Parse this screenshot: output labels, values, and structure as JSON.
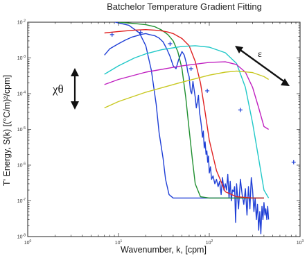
{
  "chart_data": {
    "type": "line",
    "title": "Batchelor Temperature Gradient Fitting",
    "xlabel": "Wavenumber, k, [cpm]",
    "ylabel": "T' Energy, S(k) [(°C/m)²/cpm]",
    "x_scale": "log",
    "y_scale": "log",
    "xlim": [
      1,
      1000
    ],
    "ylim": [
      1e-08,
      0.01
    ],
    "x_ticks": [
      {
        "value": 1,
        "base": "10",
        "exp": "0"
      },
      {
        "value": 10,
        "base": "10",
        "exp": "1"
      },
      {
        "value": 100,
        "base": "10",
        "exp": "2"
      },
      {
        "value": 1000,
        "base": "10",
        "exp": "3"
      }
    ],
    "y_ticks": [
      {
        "value": 1e-08,
        "base": "10",
        "exp": "-8"
      },
      {
        "value": 1e-07,
        "base": "10",
        "exp": "-7"
      },
      {
        "value": 1e-06,
        "base": "10",
        "exp": "-6"
      },
      {
        "value": 1e-05,
        "base": "10",
        "exp": "-5"
      },
      {
        "value": 0.0001,
        "base": "10",
        "exp": "-4"
      },
      {
        "value": 0.001,
        "base": "10",
        "exp": "-3"
      },
      {
        "value": 0.01,
        "base": "10",
        "exp": "-2"
      }
    ],
    "annotations": [
      {
        "text": "χθ",
        "role": "chi-theta arrow (vertical)"
      },
      {
        "text": "ε",
        "role": "epsilon arrow (diagonal)"
      }
    ],
    "series": [
      {
        "color": "#1f3fd6",
        "x": [
          7,
          8,
          10,
          13,
          17,
          20,
          23,
          26,
          28,
          31,
          33,
          36,
          40,
          45,
          60,
          100,
          200,
          400
        ],
        "y": [
          0.012,
          0.011,
          0.0095,
          0.0082,
          0.005,
          0.0022,
          0.00045,
          5e-05,
          8e-06,
          1.5e-06,
          4e-07,
          1.5e-07,
          1.2e-07,
          1.2e-07,
          1.2e-07,
          1.2e-07,
          1.2e-07,
          1.2e-07
        ]
      },
      {
        "color": "#1f3fd6",
        "x": [
          7,
          8,
          10,
          12,
          14,
          16,
          18,
          20,
          22,
          25,
          28,
          31,
          34,
          37,
          40,
          43,
          46,
          50,
          53,
          56,
          58,
          60,
          62,
          64,
          66,
          68,
          70,
          72,
          74,
          76,
          78,
          80,
          82,
          84,
          86,
          88,
          90,
          92,
          94,
          96,
          98,
          100,
          103,
          106,
          110,
          115,
          120,
          125,
          130,
          135,
          140,
          145,
          150,
          155,
          160,
          165,
          170,
          175,
          180,
          185,
          190,
          195,
          200,
          210,
          220,
          230,
          240,
          250,
          260,
          270,
          280,
          290,
          300,
          310,
          320,
          330,
          340,
          350,
          360,
          370,
          380,
          390,
          400,
          410,
          420,
          430,
          440,
          450
        ],
        "y": [
          0.0012,
          0.0018,
          0.0025,
          0.0032,
          0.0038,
          0.0042,
          0.0046,
          0.0048,
          0.0045,
          0.0042,
          0.0036,
          0.0028,
          0.0018,
          0.0011,
          0.0006,
          0.0005,
          0.0009,
          0.0015,
          0.0012,
          0.0007,
          0.0004,
          0.0003,
          0.00012,
          0.0001,
          0.00022,
          0.00013,
          8e-05,
          4e-05,
          6e-05,
          9e-05,
          3e-05,
          2e-05,
          1.2e-05,
          6e-06,
          9e-06,
          3e-06,
          4.5e-06,
          2e-06,
          2.5e-06,
          1.2e-06,
          1.8e-06,
          6e-07,
          9e-07,
          4e-07,
          5e-07,
          3e-07,
          4e-07,
          2.5e-07,
          3.5e-07,
          1.5e-07,
          4.5e-07,
          2e-07,
          3e-07,
          2e-07,
          5.5e-07,
          1.2e-07,
          3.5e-07,
          1e-07,
          2e-07,
          1.8e-07,
          2.5e-07,
          2.5e-08,
          3e-07,
          6e-08,
          4e-07,
          1.5e-07,
          8e-08,
          2.2e-07,
          4e-08,
          2.5e-07,
          6e-08,
          4.5e-07,
          2e-07,
          5e-08,
          1.2e-07,
          3e-08,
          8e-08,
          1.5e-08,
          5e-08,
          1.2e-08,
          7e-08,
          3e-08,
          9e-08,
          4e-08,
          6e-08,
          3e-08,
          7e-08,
          3e-08
        ]
      },
      {
        "color": "#1f8f2f",
        "x": [
          10,
          15,
          20,
          25,
          30,
          35,
          40,
          45,
          50,
          55,
          60,
          65,
          70,
          80,
          100,
          200,
          400
        ],
        "y": [
          0.01,
          0.0092,
          0.0085,
          0.0075,
          0.006,
          0.0045,
          0.003,
          0.0015,
          0.0005,
          8e-05,
          1e-05,
          1.5e-06,
          3e-07,
          1.3e-07,
          1.2e-07,
          1.2e-07,
          1.2e-07
        ]
      },
      {
        "color": "#e02020",
        "x": [
          7,
          10,
          15,
          20,
          25,
          30,
          35,
          40,
          50,
          60,
          70,
          80,
          90,
          100,
          120,
          150,
          200,
          300,
          400
        ],
        "y": [
          0.005,
          0.0055,
          0.006,
          0.0062,
          0.006,
          0.0057,
          0.0053,
          0.0048,
          0.0035,
          0.0022,
          0.0008,
          0.0002,
          3e-05,
          5e-06,
          7e-07,
          1.8e-07,
          1.3e-07,
          1.2e-07,
          1.2e-07
        ]
      },
      {
        "color": "#20c8c8",
        "x": [
          7,
          10,
          15,
          20,
          30,
          50,
          70,
          100,
          150,
          200,
          250,
          300,
          350,
          400,
          450
        ],
        "y": [
          0.00035,
          0.0006,
          0.001,
          0.0013,
          0.0017,
          0.0021,
          0.0022,
          0.002,
          0.0014,
          0.0007,
          0.00015,
          1.5e-05,
          1.5e-06,
          2e-07,
          1.2e-07
        ]
      },
      {
        "color": "#c020c0",
        "x": [
          7,
          10,
          20,
          50,
          100,
          150,
          200,
          250,
          300,
          350,
          400,
          450
        ],
        "y": [
          0.00018,
          0.00025,
          0.0004,
          0.0006,
          0.00075,
          0.00078,
          0.00065,
          0.0004,
          0.00015,
          4e-05,
          1.2e-05,
          1e-05
        ]
      },
      {
        "color": "#c8c820",
        "x": [
          7,
          10,
          20,
          50,
          100,
          150,
          200,
          300,
          400,
          450
        ],
        "y": [
          4e-05,
          6e-05,
          0.00011,
          0.00021,
          0.00033,
          0.0004,
          0.00043,
          0.00039,
          0.0003,
          0.00025
        ]
      }
    ],
    "markers": {
      "color": "#1f3fd6",
      "x": [
        8.5,
        17.5,
        37,
        63,
        95,
        220,
        850
      ],
      "y": [
        0.0045,
        0.0052,
        0.0025,
        0.0005,
        0.00012,
        3.5e-05,
        1.2e-06
      ]
    }
  }
}
